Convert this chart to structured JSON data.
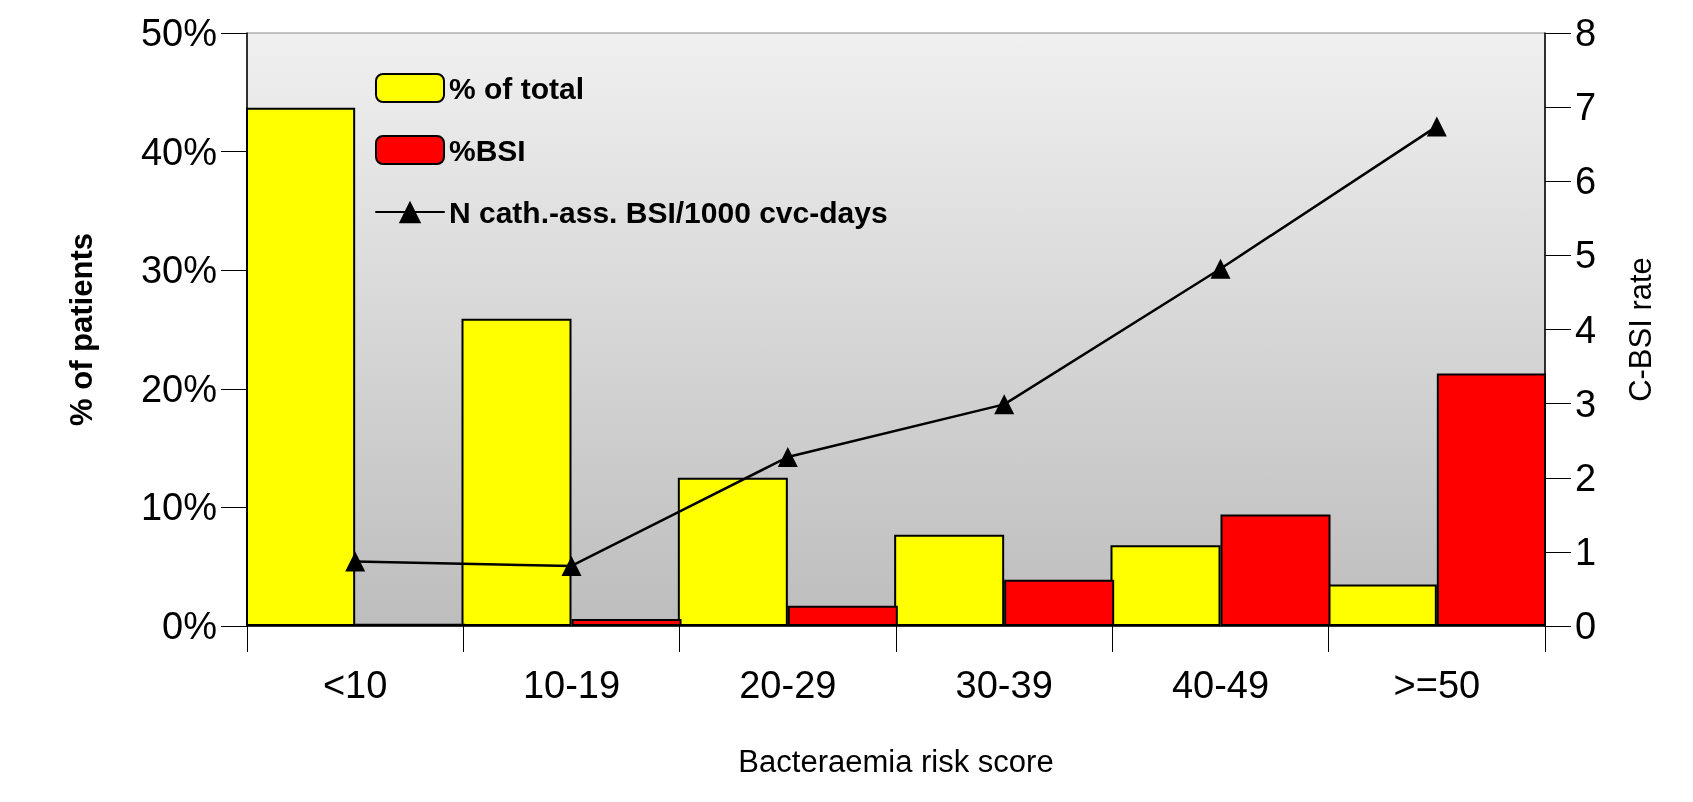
{
  "chart_data": {
    "type": "bar",
    "categories": [
      "<10",
      "10-19",
      "20-29",
      "30-39",
      "40-49",
      ">=50"
    ],
    "xlabel": "Bacteraemia risk score",
    "ylabel": "% of patients",
    "y2label": "C-BSI rate",
    "series": [
      {
        "name": "% of total",
        "color": "#ffff00",
        "values": [
          43.7,
          25.9,
          12.5,
          7.7,
          6.8,
          3.5
        ]
      },
      {
        "name": "%BSI",
        "color": "#ff0000",
        "values": [
          0.2,
          0.6,
          1.7,
          3.9,
          9.4,
          21.3
        ]
      },
      {
        "name": "N cath.-ass. BSI/1000 cvc-days",
        "type": "line",
        "axis": "y2",
        "color": "#000000",
        "marker": "triangle",
        "line_style": "solid",
        "values": [
          0.87,
          0.81,
          2.28,
          2.99,
          4.82,
          6.74
        ]
      }
    ],
    "ylim": [
      0,
      50
    ],
    "yticks": [
      {
        "value": 0,
        "label": "0%"
      },
      {
        "value": 10,
        "label": "10%"
      },
      {
        "value": 20,
        "label": "20%"
      },
      {
        "value": 30,
        "label": "30%"
      },
      {
        "value": 40,
        "label": "40%"
      },
      {
        "value": 50,
        "label": "50%"
      }
    ],
    "y2lim": [
      0,
      8
    ],
    "y2ticks": [
      0,
      1,
      2,
      3,
      4,
      5,
      6,
      7,
      8
    ],
    "grid": false,
    "legend": "top left"
  }
}
